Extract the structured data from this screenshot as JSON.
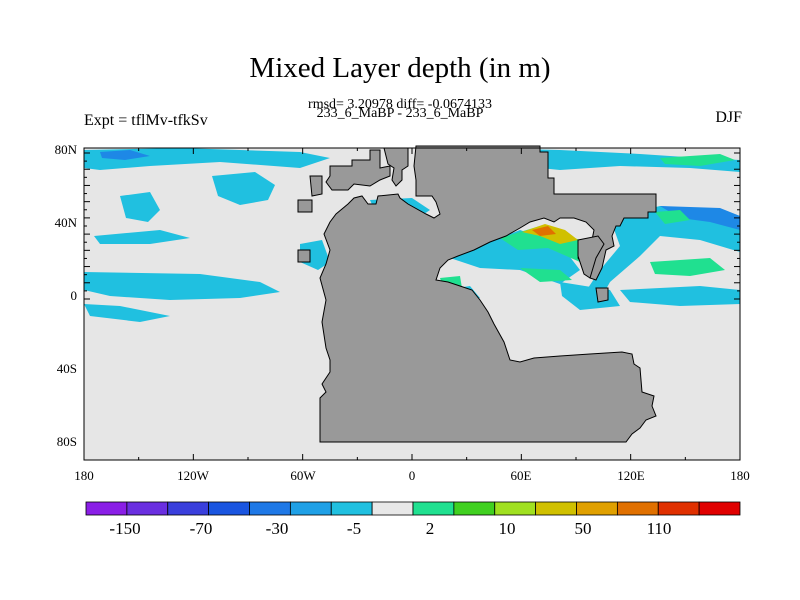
{
  "title": "Mixed Layer depth (in m)",
  "stats": "rmsd= 3.20978 diff= -0.0674133",
  "subtitle": "233_6_MaBP - 233_6_MaBP",
  "experiment": "Expt = tflMv-tfkSv",
  "season": "DJF",
  "axes": {
    "x_ticks": [
      "180",
      "120W",
      "60W",
      "0",
      "60E",
      "120E",
      "180"
    ],
    "y_ticks": [
      "80N",
      "40N",
      "0",
      "40S",
      "80S"
    ]
  },
  "colorbar": {
    "colors": [
      "#8a1ee6",
      "#6a2fe0",
      "#3a3fdc",
      "#1a55e0",
      "#1e78e6",
      "#1fa0e6",
      "#20c0e0",
      "#e8e8e8",
      "#20e090",
      "#40d020",
      "#a0e020",
      "#d0c000",
      "#e0a000",
      "#e07000",
      "#e03000",
      "#e00000"
    ],
    "labels": [
      "-150",
      "-70",
      "-30",
      "-5",
      "2",
      "10",
      "50",
      "110"
    ]
  },
  "map_colors": {
    "ocean": "#e6e6e6",
    "land": "#999999",
    "cyan": "#20c0e0",
    "blue": "#1e88e6",
    "green": "#20e090",
    "yellow": "#d0c000",
    "orange": "#e07000"
  }
}
